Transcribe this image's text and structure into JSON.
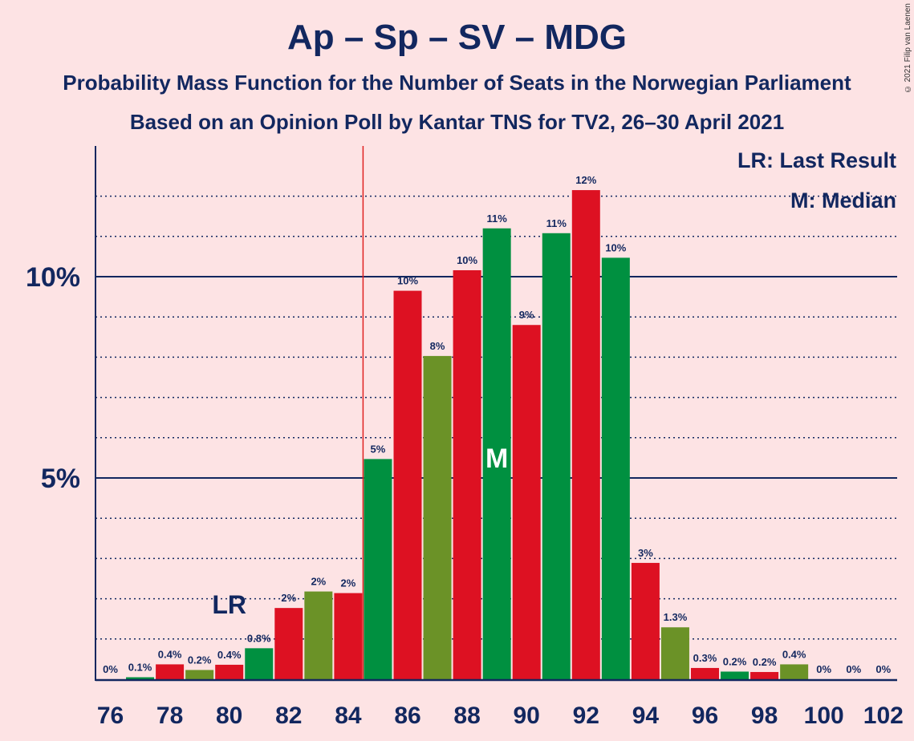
{
  "header": {
    "title": "Ap – Sp – SV – MDG",
    "subtitle1": "Probability Mass Function for the Number of Seats in the Norwegian Parliament",
    "subtitle2": "Based on an Opinion Poll by Kantar TNS for TV2, 26–30 April 2021",
    "copyright": "© 2021 Filip van Laenen"
  },
  "legend": {
    "lr": "LR: Last Result",
    "m": "M: Median"
  },
  "annotations": {
    "lr_text": "LR",
    "lr_seat": 80,
    "m_text": "M",
    "m_seat": 89,
    "majority_line_seat": 84.5
  },
  "colors": {
    "background": "#fde3e4",
    "red": "#dd1122",
    "green": "#009040",
    "olive": "#6b9227",
    "axis": "#12275f",
    "majority_line": "#e02020"
  },
  "chart_data": {
    "type": "bar",
    "xlabel": "",
    "ylabel": "",
    "ylim": [
      0,
      13
    ],
    "yticks": [
      {
        "value": 5,
        "label": "5%"
      },
      {
        "value": 10,
        "label": "10%"
      }
    ],
    "xticks": [
      76,
      78,
      80,
      82,
      84,
      86,
      88,
      90,
      92,
      94,
      96,
      98,
      100,
      102
    ],
    "grid": "dotted every 1%, solid at 5% and 10%",
    "legend_position": "top-right",
    "bars": [
      {
        "seat": 76,
        "value": 0,
        "label": "0%",
        "color": "green"
      },
      {
        "seat": 77,
        "value": 0.05,
        "label": "0.1%",
        "color": "green"
      },
      {
        "seat": 78,
        "value": 0.37,
        "label": "0.4%",
        "color": "red"
      },
      {
        "seat": 79,
        "value": 0.23,
        "label": "0.2%",
        "color": "olive"
      },
      {
        "seat": 80,
        "value": 0.36,
        "label": "0.4%",
        "color": "red"
      },
      {
        "seat": 81,
        "value": 0.77,
        "label": "0.8%",
        "color": "green"
      },
      {
        "seat": 82,
        "value": 1.77,
        "label": "2%",
        "color": "red"
      },
      {
        "seat": 83,
        "value": 2.18,
        "label": "2%",
        "color": "olive"
      },
      {
        "seat": 84,
        "value": 2.14,
        "label": "2%",
        "color": "red"
      },
      {
        "seat": 85,
        "value": 5.47,
        "label": "5%",
        "color": "green"
      },
      {
        "seat": 86,
        "value": 9.65,
        "label": "10%",
        "color": "red"
      },
      {
        "seat": 87,
        "value": 8.03,
        "label": "8%",
        "color": "olive"
      },
      {
        "seat": 88,
        "value": 10.16,
        "label": "10%",
        "color": "red"
      },
      {
        "seat": 89,
        "value": 11.2,
        "label": "11%",
        "color": "green"
      },
      {
        "seat": 90,
        "value": 8.8,
        "label": "9%",
        "color": "red"
      },
      {
        "seat": 91,
        "value": 11.08,
        "label": "11%",
        "color": "green"
      },
      {
        "seat": 92,
        "value": 12.15,
        "label": "12%",
        "color": "red"
      },
      {
        "seat": 93,
        "value": 10.47,
        "label": "10%",
        "color": "green"
      },
      {
        "seat": 94,
        "value": 2.89,
        "label": "3%",
        "color": "red"
      },
      {
        "seat": 95,
        "value": 1.29,
        "label": "1.3%",
        "color": "olive"
      },
      {
        "seat": 96,
        "value": 0.28,
        "label": "0.3%",
        "color": "red"
      },
      {
        "seat": 97,
        "value": 0.19,
        "label": "0.2%",
        "color": "green"
      },
      {
        "seat": 98,
        "value": 0.18,
        "label": "0.2%",
        "color": "red"
      },
      {
        "seat": 99,
        "value": 0.37,
        "label": "0.4%",
        "color": "olive"
      },
      {
        "seat": 100,
        "value": 0,
        "label": "0%",
        "color": "green"
      },
      {
        "seat": 101,
        "value": 0,
        "label": "0%",
        "color": "green"
      },
      {
        "seat": 102,
        "value": 0,
        "label": "0%",
        "color": "green"
      }
    ]
  }
}
